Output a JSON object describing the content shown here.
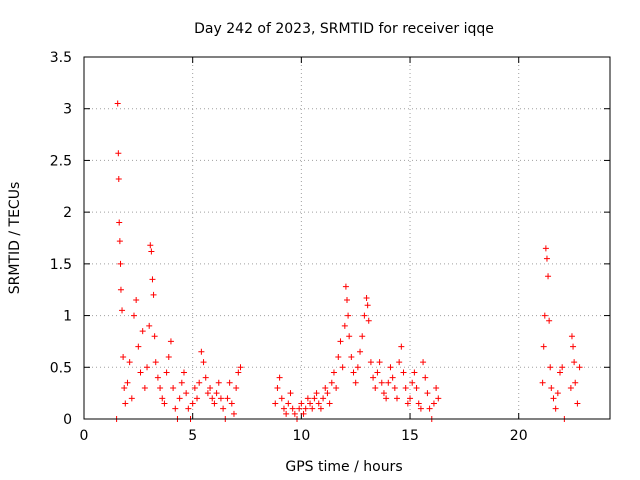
{
  "chart_data": {
    "type": "scatter",
    "title": "Day 242 of 2023, SRMTID for receiver iqqe",
    "xlabel": "GPS time / hours",
    "ylabel": "SRMTID / TECUs",
    "xlim": [
      0,
      24.2
    ],
    "ylim": [
      0,
      3.5
    ],
    "x_ticks": [
      0,
      5,
      10,
      15,
      20
    ],
    "x_tick_labels": [
      "0",
      "5",
      "10",
      "15",
      "20"
    ],
    "y_ticks": [
      0,
      0.5,
      1,
      1.5,
      2,
      2.5,
      3,
      3.5
    ],
    "y_tick_labels": [
      "0",
      "0.5",
      "1",
      "1.5",
      "2",
      "2.5",
      "3",
      "3.5"
    ],
    "grid": true,
    "marker": "+",
    "color": "#ff0000",
    "series": [
      {
        "name": "SRMTID",
        "x": [
          1.5,
          1.55,
          1.58,
          1.6,
          1.62,
          1.65,
          1.68,
          1.7,
          1.75,
          1.8,
          1.85,
          1.9,
          2.0,
          2.1,
          2.2,
          2.3,
          2.4,
          2.5,
          2.6,
          2.7,
          2.8,
          2.9,
          3.0,
          3.05,
          3.1,
          3.15,
          3.2,
          3.25,
          3.3,
          3.4,
          3.5,
          3.6,
          3.7,
          3.8,
          3.9,
          4.0,
          4.1,
          4.2,
          4.3,
          4.4,
          4.5,
          4.6,
          4.7,
          4.8,
          4.9,
          5.0,
          5.1,
          5.2,
          5.3,
          5.4,
          5.5,
          5.6,
          5.7,
          5.8,
          5.9,
          6.0,
          6.1,
          6.2,
          6.3,
          6.4,
          6.5,
          6.6,
          6.7,
          6.8,
          6.9,
          7.0,
          7.1,
          7.2,
          8.8,
          8.9,
          9.0,
          9.1,
          9.2,
          9.3,
          9.4,
          9.5,
          9.6,
          9.7,
          9.8,
          9.9,
          10.0,
          10.1,
          10.2,
          10.3,
          10.4,
          10.5,
          10.6,
          10.7,
          10.8,
          10.9,
          11.0,
          11.1,
          11.2,
          11.3,
          11.4,
          11.5,
          11.6,
          11.7,
          11.8,
          11.9,
          12.0,
          12.05,
          12.1,
          12.15,
          12.2,
          12.3,
          12.4,
          12.5,
          12.6,
          12.7,
          12.8,
          12.9,
          13.0,
          13.05,
          13.1,
          13.2,
          13.3,
          13.4,
          13.5,
          13.6,
          13.7,
          13.8,
          13.9,
          14.0,
          14.1,
          14.2,
          14.3,
          14.4,
          14.5,
          14.6,
          14.7,
          14.8,
          14.9,
          15.0,
          15.1,
          15.2,
          15.3,
          15.4,
          15.5,
          15.6,
          15.7,
          15.8,
          15.9,
          16.0,
          16.1,
          16.2,
          16.3,
          21.1,
          21.15,
          21.2,
          21.25,
          21.3,
          21.35,
          21.4,
          21.45,
          21.5,
          21.6,
          21.7,
          21.8,
          21.9,
          22.0,
          22.1,
          22.4,
          22.45,
          22.5,
          22.55,
          22.6,
          22.7,
          22.8
        ],
        "y": [
          0.0,
          3.05,
          2.57,
          2.32,
          1.9,
          1.72,
          1.5,
          1.25,
          1.05,
          0.6,
          0.3,
          0.15,
          0.35,
          0.55,
          0.2,
          1.0,
          1.15,
          0.7,
          0.45,
          0.85,
          0.3,
          0.5,
          0.9,
          1.68,
          1.62,
          1.35,
          1.2,
          0.8,
          0.55,
          0.4,
          0.3,
          0.2,
          0.15,
          0.45,
          0.6,
          0.75,
          0.3,
          0.1,
          0.0,
          0.2,
          0.35,
          0.45,
          0.25,
          0.1,
          0.0,
          0.15,
          0.3,
          0.2,
          0.35,
          0.65,
          0.55,
          0.4,
          0.25,
          0.3,
          0.2,
          0.15,
          0.25,
          0.35,
          0.2,
          0.1,
          0.0,
          0.2,
          0.35,
          0.15,
          0.05,
          0.3,
          0.45,
          0.5,
          0.15,
          0.3,
          0.4,
          0.2,
          0.1,
          0.05,
          0.15,
          0.25,
          0.1,
          0.05,
          0.0,
          0.1,
          0.15,
          0.05,
          0.1,
          0.2,
          0.15,
          0.1,
          0.2,
          0.25,
          0.15,
          0.1,
          0.2,
          0.3,
          0.25,
          0.15,
          0.35,
          0.45,
          0.3,
          0.6,
          0.75,
          0.5,
          0.9,
          1.28,
          1.15,
          1.0,
          0.8,
          0.6,
          0.45,
          0.35,
          0.5,
          0.65,
          0.8,
          1.0,
          1.17,
          1.1,
          0.95,
          0.55,
          0.4,
          0.3,
          0.45,
          0.55,
          0.35,
          0.25,
          0.2,
          0.35,
          0.5,
          0.4,
          0.3,
          0.2,
          0.55,
          0.7,
          0.45,
          0.3,
          0.15,
          0.2,
          0.35,
          0.45,
          0.3,
          0.15,
          0.1,
          0.55,
          0.4,
          0.25,
          0.1,
          0.0,
          0.15,
          0.3,
          0.2,
          0.35,
          0.7,
          1.0,
          1.65,
          1.55,
          1.38,
          0.95,
          0.5,
          0.3,
          0.2,
          0.1,
          0.25,
          0.45,
          0.5,
          0.0,
          0.3,
          0.8,
          0.7,
          0.55,
          0.35,
          0.15,
          0.5
        ]
      }
    ]
  }
}
